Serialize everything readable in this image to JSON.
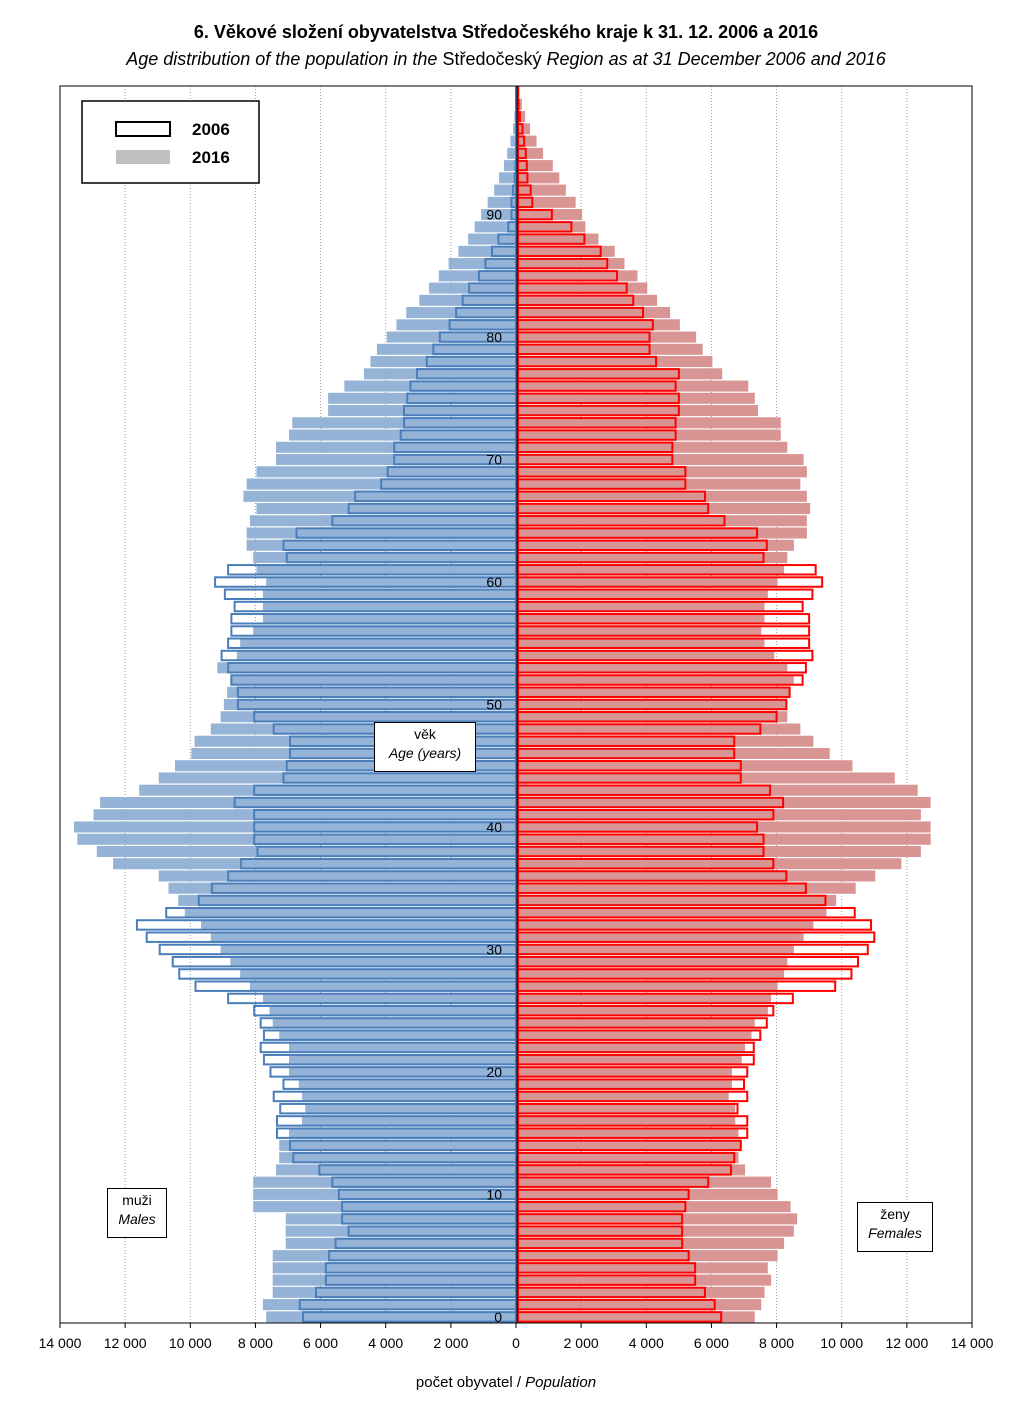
{
  "title": "6. Věkové složení obyvatelstva Středočeského kraje k 31. 12. 2006 a 2016",
  "subtitle_prefix": "Age distribution of the population in the",
  "subtitle_region": "Středočeský",
  "subtitle_suffix": "Region as at 31 December 2006 and 2016",
  "legend": {
    "series_2006": "2006",
    "series_2016": "2016"
  },
  "center_label": {
    "cz": "věk",
    "en": "Age (years)"
  },
  "males_label": {
    "cz": "muži",
    "en": "Males"
  },
  "females_label": {
    "cz": "ženy",
    "en": "Females"
  },
  "xlabel": {
    "cz": "počet obyvatel",
    "sep": " / ",
    "en": "Population"
  },
  "colors": {
    "male_2016_fill": "#95b3d7",
    "female_2016_fill": "#d99594",
    "male_2006_outline": "#4a7ebb",
    "female_2006_outline": "#ff0000"
  },
  "chart_data": {
    "type": "bar",
    "orientation": "horizontal population pyramid",
    "x_ticks": [
      "14 000",
      "12 000",
      "10 000",
      "8 000",
      "6 000",
      "4 000",
      "2 000",
      "0",
      "2 000",
      "4 000",
      "6 000",
      "8 000",
      "10 000",
      "12 000",
      "14 000"
    ],
    "x_range": [
      -14000,
      14000
    ],
    "age_ticks": [
      0,
      10,
      20,
      30,
      40,
      50,
      60,
      70,
      80,
      90
    ],
    "age_range": [
      0,
      100
    ],
    "grid": "vertical dotted",
    "legend_position": "top-left",
    "ages": [
      0,
      1,
      2,
      3,
      4,
      5,
      6,
      7,
      8,
      9,
      10,
      11,
      12,
      13,
      14,
      15,
      16,
      17,
      18,
      19,
      20,
      21,
      22,
      23,
      24,
      25,
      26,
      27,
      28,
      29,
      30,
      31,
      32,
      33,
      34,
      35,
      36,
      37,
      38,
      39,
      40,
      41,
      42,
      43,
      44,
      45,
      46,
      47,
      48,
      49,
      50,
      51,
      52,
      53,
      54,
      55,
      56,
      57,
      58,
      59,
      60,
      61,
      62,
      63,
      64,
      65,
      66,
      67,
      68,
      69,
      70,
      71,
      72,
      73,
      74,
      75,
      76,
      77,
      78,
      79,
      80,
      81,
      82,
      83,
      84,
      85,
      86,
      87,
      88,
      89,
      90,
      91,
      92,
      93,
      94,
      95,
      96,
      97,
      98,
      99,
      100
    ],
    "series": [
      {
        "name": "2006",
        "side": "males",
        "values": [
          6600,
          6700,
          6200,
          5900,
          5900,
          5800,
          5600,
          5200,
          5400,
          5400,
          5500,
          5700,
          6100,
          6900,
          7000,
          7400,
          7400,
          7300,
          7500,
          7200,
          7600,
          7800,
          7900,
          7800,
          7900,
          8100,
          8900,
          9900,
          10400,
          10600,
          11000,
          11400,
          11700,
          10800,
          9800,
          9400,
          8900,
          8500,
          8000,
          8100,
          8100,
          8100,
          8700,
          8100,
          7200,
          7100,
          7000,
          7000,
          7500,
          8100,
          8600,
          8600,
          8800,
          8900,
          9100,
          8900,
          8800,
          8800,
          8700,
          9000,
          9300,
          8900,
          7100,
          7200,
          6800,
          5700,
          5200,
          5000,
          4200,
          4000,
          3800,
          3800,
          3600,
          3500,
          3500,
          3400,
          3300,
          3100,
          2800,
          2600,
          2400,
          2100,
          1900,
          1700,
          1500,
          1200,
          1000,
          800,
          600,
          300,
          200,
          200,
          150,
          100,
          80,
          60,
          40,
          30,
          20,
          10,
          10
        ]
      },
      {
        "name": "2016",
        "side": "males",
        "values": [
          7700,
          7800,
          7500,
          7500,
          7500,
          7500,
          7100,
          7100,
          7100,
          8100,
          8100,
          8100,
          7400,
          7300,
          7300,
          7000,
          6600,
          6500,
          6600,
          6700,
          7000,
          7000,
          7000,
          7300,
          7500,
          7600,
          7800,
          8200,
          8500,
          8800,
          9100,
          9400,
          9700,
          10200,
          10400,
          10700,
          11000,
          12400,
          12900,
          13500,
          13600,
          13000,
          12800,
          11600,
          11000,
          10500,
          10000,
          9900,
          9400,
          9100,
          9000,
          8900,
          8800,
          9200,
          8600,
          8500,
          8100,
          7800,
          7800,
          7800,
          7700,
          8000,
          8100,
          8300,
          8300,
          8200,
          8000,
          8400,
          8300,
          8000,
          7400,
          7400,
          7000,
          6900,
          5800,
          5800,
          5300,
          4700,
          4500,
          4300,
          4000,
          3700,
          3400,
          3000,
          2700,
          2400,
          2100,
          1800,
          1500,
          1300,
          1100,
          900,
          700,
          550,
          400,
          300,
          200,
          120,
          80,
          50,
          30
        ]
      },
      {
        "name": "2006",
        "side": "females",
        "values": [
          6300,
          6100,
          5800,
          5500,
          5500,
          5300,
          5100,
          5100,
          5100,
          5200,
          5300,
          5900,
          6600,
          6700,
          6900,
          7100,
          7100,
          6800,
          7100,
          7000,
          7100,
          7300,
          7300,
          7500,
          7700,
          7900,
          8500,
          9800,
          10300,
          10500,
          10800,
          11000,
          10900,
          10400,
          9500,
          8900,
          8300,
          7900,
          7600,
          7600,
          7400,
          7900,
          8200,
          7800,
          6900,
          6900,
          6700,
          6700,
          7500,
          8000,
          8300,
          8400,
          8800,
          8900,
          9100,
          9000,
          9000,
          9000,
          8800,
          9100,
          9400,
          9200,
          7600,
          7700,
          7400,
          6400,
          5900,
          5800,
          5200,
          5200,
          4800,
          4800,
          4900,
          4900,
          5000,
          5000,
          4900,
          5000,
          4300,
          4100,
          4100,
          4200,
          3900,
          3600,
          3400,
          3100,
          2800,
          2600,
          2100,
          1700,
          1100,
          500,
          450,
          350,
          330,
          300,
          250,
          200,
          120,
          80,
          50
        ]
      },
      {
        "name": "2016",
        "side": "females",
        "values": [
          7300,
          7500,
          7600,
          7800,
          7700,
          8000,
          8200,
          8500,
          8600,
          8400,
          8000,
          7800,
          7000,
          6800,
          6900,
          6800,
          6700,
          6700,
          6500,
          6600,
          6600,
          6900,
          7000,
          7200,
          7300,
          7700,
          7800,
          8000,
          8200,
          8300,
          8500,
          8800,
          9100,
          9500,
          9800,
          10400,
          11000,
          11800,
          12400,
          12700,
          12700,
          12400,
          12700,
          12300,
          11600,
          10300,
          9600,
          9100,
          8700,
          8300,
          8300,
          8400,
          8500,
          8300,
          7900,
          7600,
          7500,
          7600,
          7600,
          7700,
          8000,
          8200,
          8300,
          8500,
          8900,
          8900,
          9000,
          8900,
          8700,
          8900,
          8800,
          8300,
          8100,
          8100,
          7400,
          7300,
          7100,
          6300,
          6000,
          5700,
          5500,
          5000,
          4700,
          4300,
          4000,
          3700,
          3300,
          3000,
          2500,
          2100,
          2000,
          1800,
          1500,
          1300,
          1100,
          800,
          600,
          400,
          250,
          150,
          80
        ]
      }
    ]
  }
}
